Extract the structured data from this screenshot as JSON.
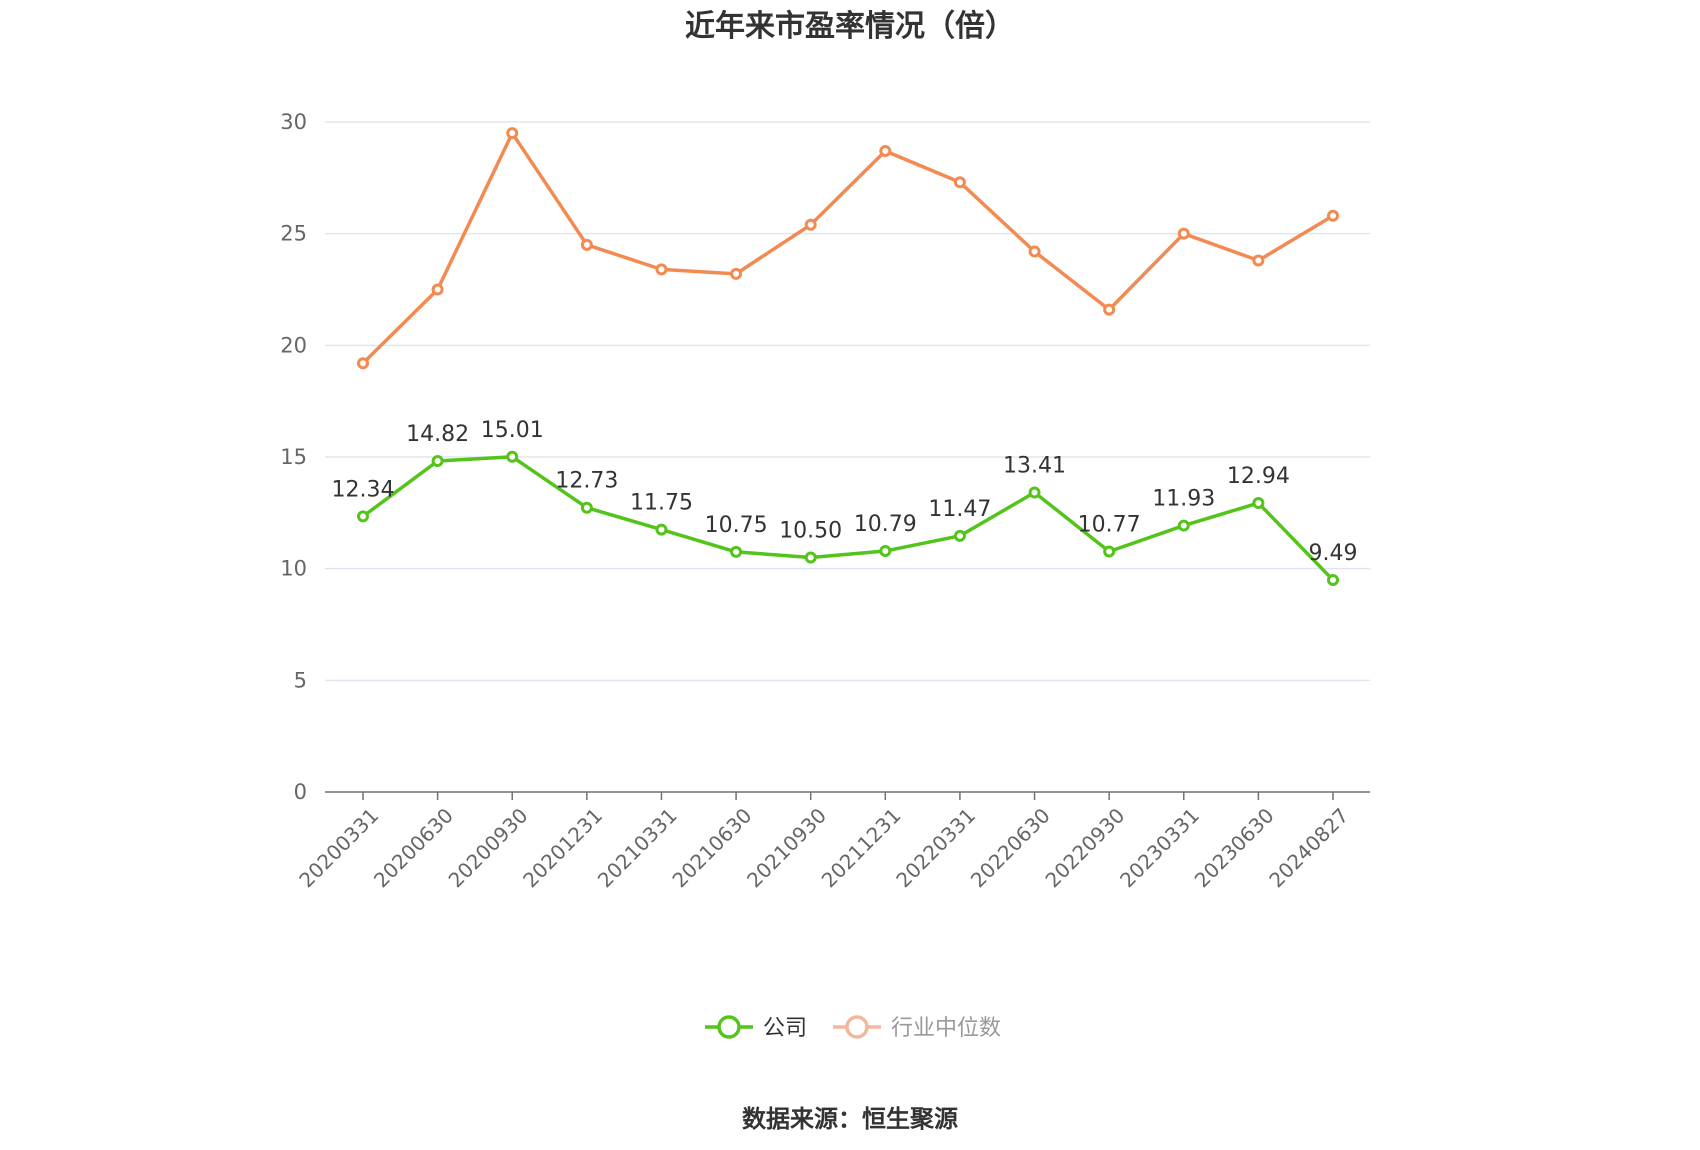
{
  "chart_data": {
    "type": "line",
    "title": "近年来市盈率情况（倍）",
    "x": [
      "20200331",
      "20200630",
      "20200930",
      "20201231",
      "20210331",
      "20210630",
      "20210930",
      "20211231",
      "20220331",
      "20220630",
      "20220930",
      "20230331",
      "20230630",
      "20240827"
    ],
    "series": [
      {
        "name": "公司",
        "color": "#52c41a",
        "values": [
          12.34,
          14.82,
          15.01,
          12.73,
          11.75,
          10.75,
          10.5,
          10.79,
          11.47,
          13.41,
          10.77,
          11.93,
          12.94,
          9.49
        ],
        "labels": [
          "12.34",
          "14.82",
          "15.01",
          "12.73",
          "11.75",
          "10.75",
          "10.50",
          "10.79",
          "11.47",
          "13.41",
          "10.77",
          "11.93",
          "12.94",
          "9.49"
        ],
        "show_labels": true
      },
      {
        "name": "行业中位数",
        "color": "#f28a52",
        "values": [
          19.2,
          22.5,
          29.5,
          24.5,
          23.4,
          23.2,
          25.4,
          28.7,
          27.3,
          24.2,
          21.6,
          25.0,
          23.8,
          25.8
        ],
        "show_labels": false
      }
    ],
    "ylim": [
      0,
      30
    ],
    "yticks": [
      "0",
      "5",
      "10",
      "15",
      "20",
      "25",
      "30"
    ],
    "grid": true,
    "legend_position": "bottom",
    "legend_inactive_series": [
      "行业中位数"
    ],
    "xlabel": "",
    "ylabel": ""
  },
  "source": "数据来源：恒生聚源",
  "colors": {
    "grid": "#e0e6f1",
    "axis": "#6e7079",
    "title": "#333333",
    "legend_inactive": "#f4b79c",
    "legend_inactive_text": "#999999"
  }
}
